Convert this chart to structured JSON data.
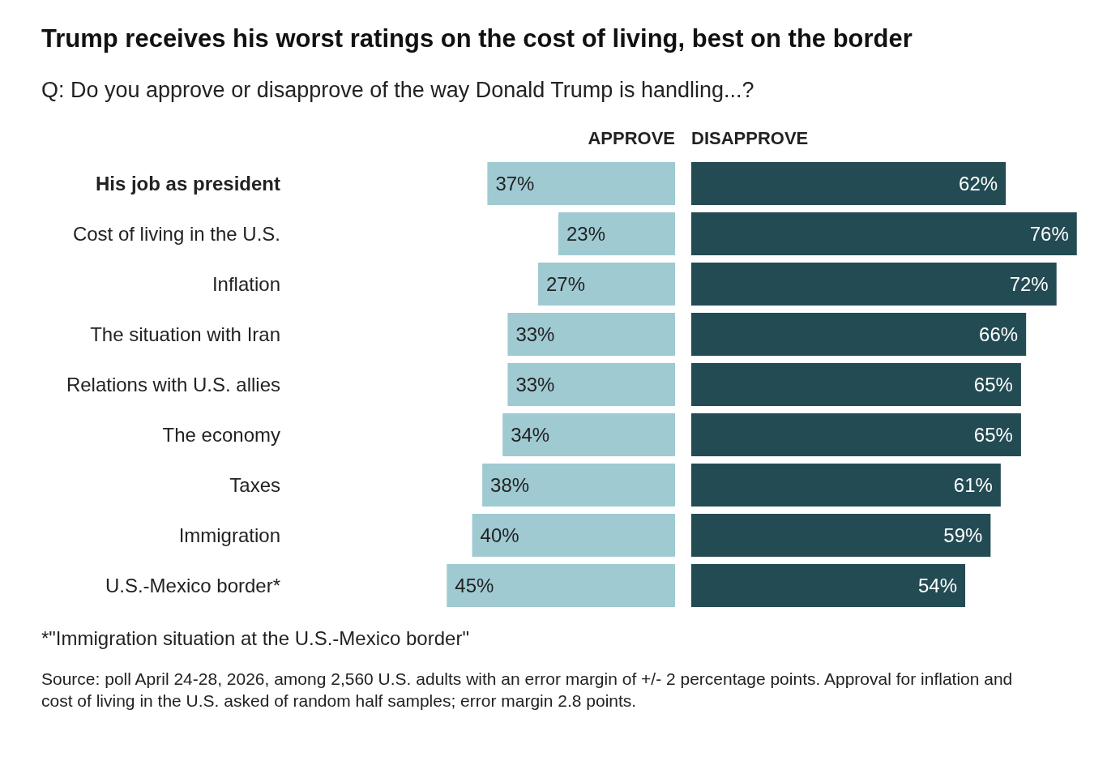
{
  "chart_data": [
    {
      "type": "other",
      "title": "Trump receives his worst ratings on the cost of living, best on the border",
      "subtitle": "Q: Do you approve or disapprove of the way Donald Trump is handling...?",
      "annotations": [
        "*\"Immigration situation at the U.S.-Mexico border\"",
        "Source: poll April 24-28, 2026, among 2,560 U.S. adults with an error margin of +/- 2 percentage points. Approval for inflation and cost of living in the U.S. asked of random half samples; error margin 2.8 points."
      ]
    },
    {
      "type": "bar",
      "orientation": "horizontal",
      "title": "APPROVE",
      "categories": [
        "His job as president",
        "Cost of living in the U.S.",
        "Inflation",
        "The situation with Iran",
        "Relations with U.S. allies",
        "The economy",
        "Taxes",
        "Immigration",
        "U.S.-Mexico border*"
      ],
      "color": "#9fcad2",
      "values": [
        37,
        23,
        27,
        33,
        33,
        34,
        38,
        40,
        45
      ],
      "value_labels": [
        "37%",
        "23%",
        "27%",
        "33%",
        "33%",
        "34%",
        "38%",
        "40%",
        "45%"
      ]
    },
    {
      "type": "bar",
      "orientation": "horizontal",
      "title": "DISAPPROVE",
      "categories": [
        null,
        null,
        null,
        null,
        null,
        null,
        null,
        null,
        null
      ],
      "color": "#234b53",
      "values": [
        62,
        76,
        72,
        66,
        65,
        65,
        61,
        59,
        54
      ],
      "value_labels": [
        "62%",
        "76%",
        "72%",
        "66%",
        "65%",
        "65%",
        "61%",
        "59%",
        "54%"
      ]
    }
  ]
}
